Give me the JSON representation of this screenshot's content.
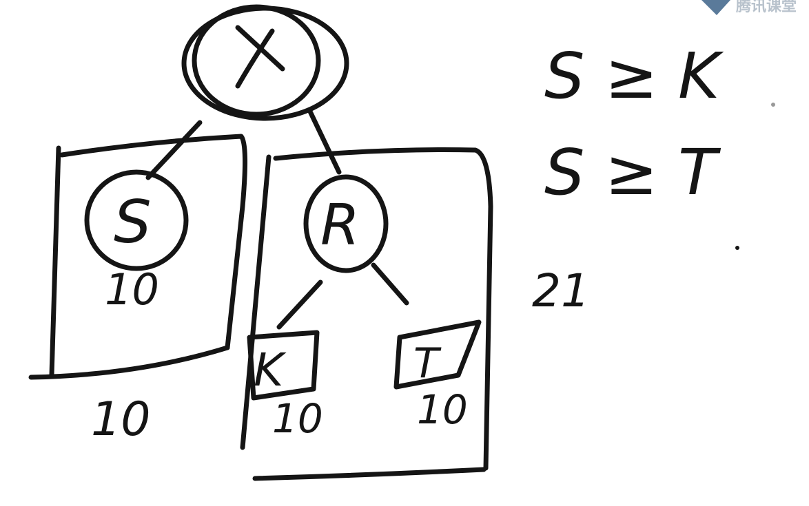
{
  "watermark": {
    "text": "腾讯课堂",
    "color": "#9aa8b6"
  },
  "tree": {
    "root_label": "X",
    "left_child_label": "S",
    "right_child_label": "R",
    "right_left_child_label": "K",
    "right_right_child_label": "T"
  },
  "annotations": {
    "s_size": "10",
    "left_box_size": "10",
    "k_size": "10",
    "t_size": "10",
    "right_box_size": "21"
  },
  "conditions": [
    "S ≥ K",
    "S ≥ T"
  ],
  "colors": {
    "ink": "#151515",
    "background": "#ffffff"
  }
}
